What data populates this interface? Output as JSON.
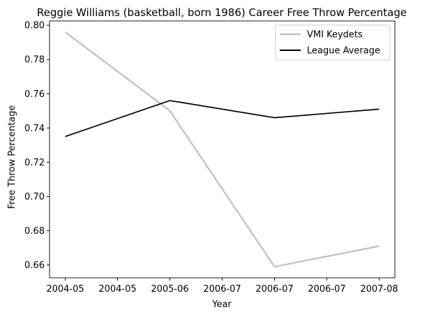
{
  "chart_data": {
    "type": "line",
    "title": "Reggie Williams (basketball, born 1986) Career Free Throw Percentage",
    "xlabel": "Year",
    "ylabel": "Free Throw Percentage",
    "x_tick_labels": [
      "2004-05",
      "2004-05",
      "2005-06",
      "2006-07",
      "2006-07",
      "2006-07",
      "2007-08"
    ],
    "x_tick_positions": [
      0,
      0.5,
      1,
      1.5,
      2,
      2.5,
      3
    ],
    "x_points": [
      0,
      1,
      2,
      3
    ],
    "x_categories": [
      "2004-05",
      "2005-06",
      "2006-07",
      "2007-08"
    ],
    "xlim": [
      -0.15,
      3.15
    ],
    "ylim": [
      0.6525,
      0.8025
    ],
    "y_ticks": [
      0.66,
      0.68,
      0.7,
      0.72,
      0.74,
      0.76,
      0.78,
      0.8
    ],
    "y_tick_labels": [
      "0.66",
      "0.68",
      "0.70",
      "0.72",
      "0.74",
      "0.76",
      "0.78",
      "0.80"
    ],
    "grid": false,
    "legend_position": "top-right",
    "series": [
      {
        "name": "VMI Keydets",
        "values": [
          0.796,
          0.75,
          0.659,
          0.671
        ],
        "color": "#bfbfbf"
      },
      {
        "name": "League Average",
        "values": [
          0.735,
          0.756,
          0.746,
          0.751
        ],
        "color": "#000000"
      }
    ]
  }
}
